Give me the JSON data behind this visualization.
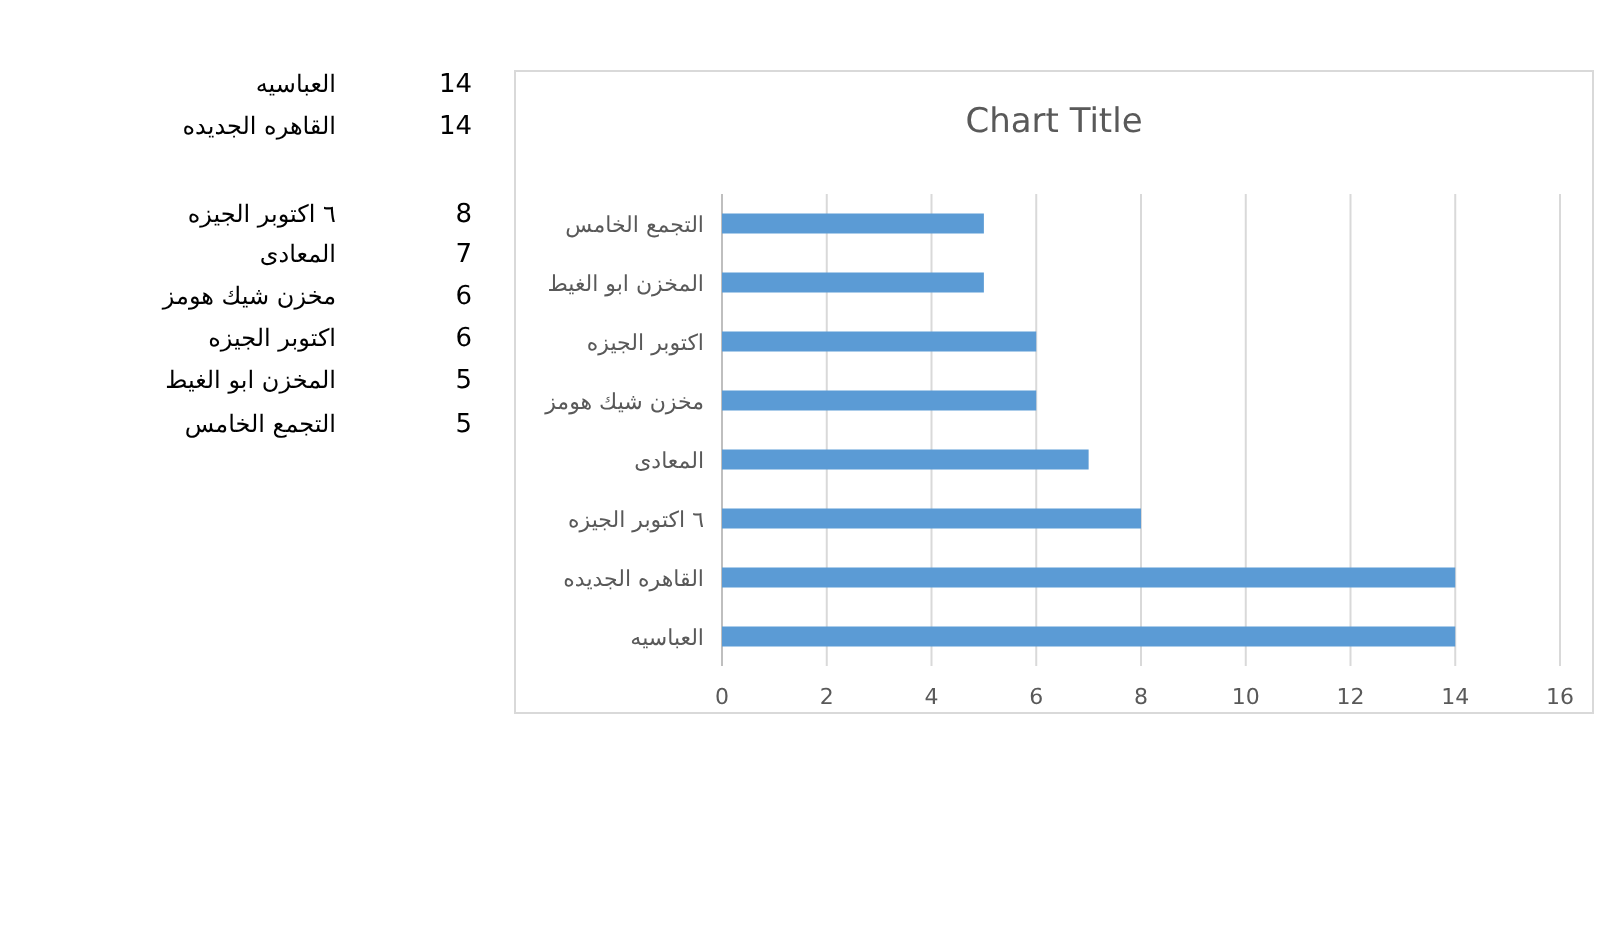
{
  "chart_data": [
    {
      "type": "other",
      "categories": [
        "العباسيه",
        "القاهره الجديده",
        "٦ اكتوبر الجيزه",
        "المعادى",
        "مخزن شيك هومز",
        "اكتوبر الجيزه",
        "المخزن ابو الغيط",
        "التجمع الخامس"
      ],
      "values": [
        14,
        14,
        8,
        7,
        6,
        6,
        5,
        5
      ],
      "data_labels": true
    },
    {
      "type": "bar",
      "orientation": "horizontal",
      "title": "Chart Title",
      "categories": [
        "التجمع الخامس",
        "المخزن ابو الغيط",
        "اكتوبر الجيزه",
        "مخزن شيك هومز",
        "المعادى",
        "٦ اكتوبر الجيزه",
        "القاهره الجديده",
        "العباسيه"
      ],
      "values": [
        5,
        5,
        6,
        6,
        7,
        8,
        14,
        14
      ],
      "color": "#5b9bd5",
      "xlim": [
        0,
        16
      ],
      "xticks": [
        0,
        2,
        4,
        6,
        8,
        10,
        12,
        14,
        16
      ],
      "grid": "x"
    }
  ]
}
